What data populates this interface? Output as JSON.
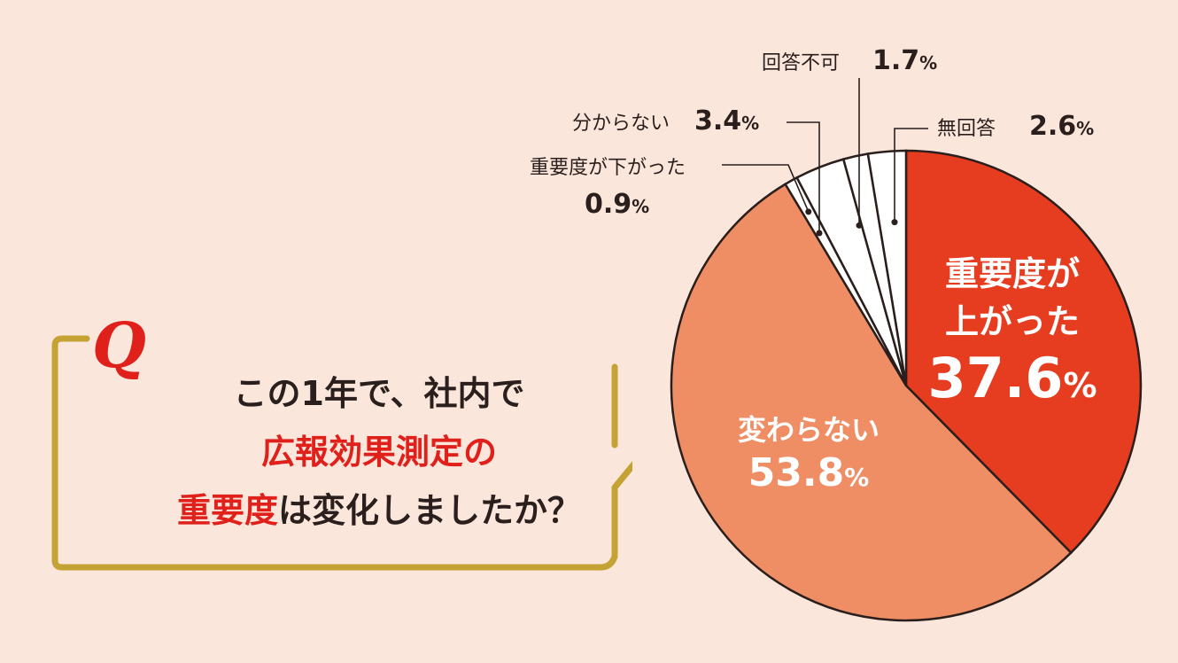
{
  "colors": {
    "background": "#fbe6dc",
    "increased": "#e63c20",
    "unchanged": "#ef8d64",
    "small_slices": "#ffffff",
    "frame": "#c4a233",
    "q_mark": "#e0211b",
    "highlight_text": "#e0211b",
    "text": "#2a1f1c"
  },
  "question": {
    "mark": "Q",
    "line1": "この1年で、社内で",
    "line2": "広報効果測定の",
    "line3_red": "重要度",
    "line3_rest": "は変化しましたか？"
  },
  "chart_data": {
    "type": "pie",
    "unit": "%",
    "slices": [
      {
        "id": "increased",
        "label_lines": [
          "重要度が",
          "上がった"
        ],
        "value": 37.6,
        "value_text": "37.6",
        "color": "#e63c20"
      },
      {
        "id": "unchanged",
        "label_lines": [
          "変わらない"
        ],
        "value": 53.8,
        "value_text": "53.8",
        "color": "#ef8d64"
      },
      {
        "id": "decreased",
        "label_lines": [
          "重要度が下がった"
        ],
        "value": 0.9,
        "value_text": "0.9",
        "color": "#ffffff"
      },
      {
        "id": "dont-know",
        "label_lines": [
          "分からない"
        ],
        "value": 3.4,
        "value_text": "3.4",
        "color": "#ffffff"
      },
      {
        "id": "cannot-answer",
        "label_lines": [
          "回答不可"
        ],
        "value": 1.7,
        "value_text": "1.7",
        "color": "#ffffff"
      },
      {
        "id": "no-answer",
        "label_lines": [
          "無回答"
        ],
        "value": 2.6,
        "value_text": "2.6",
        "color": "#ffffff"
      }
    ]
  }
}
